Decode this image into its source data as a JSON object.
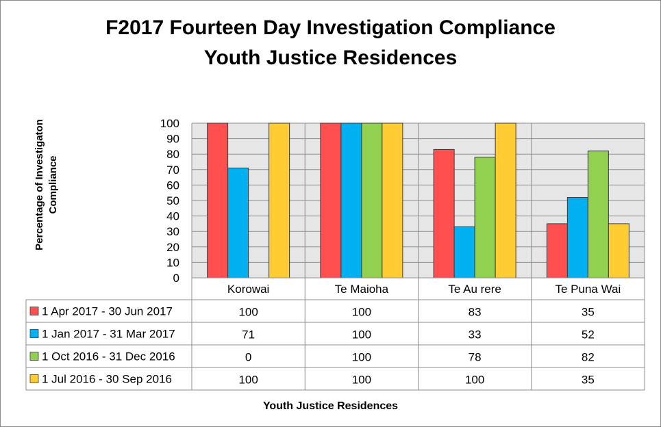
{
  "chart_data": {
    "type": "bar",
    "title_line1": "F2017 Fourteen Day Investigation Compliance",
    "title_line2": "Youth Justice Residences",
    "ylabel": "Percentage of Investigaton Compliance",
    "xlabel": "Youth Justice Residences",
    "ylim": [
      0,
      100
    ],
    "yticks": [
      0,
      10,
      20,
      30,
      40,
      50,
      60,
      70,
      80,
      90,
      100
    ],
    "grid": true,
    "legend": "data-table",
    "categories": [
      "Korowai",
      "Te Maioha",
      "Te Au rere",
      "Te Puna Wai"
    ],
    "series": [
      {
        "name": "1 Apr 2017 - 30 Jun  2017",
        "color": "#ff4f4f",
        "values": [
          100,
          100,
          83,
          35
        ]
      },
      {
        "name": "1 Jan 2017 - 31 Mar 2017",
        "color": "#00b0f0",
        "values": [
          71,
          100,
          33,
          52
        ]
      },
      {
        "name": "1 Oct 2016 - 31 Dec 2016",
        "color": "#92d050",
        "values": [
          0,
          100,
          78,
          82
        ]
      },
      {
        "name": "1 Jul 2016 - 30 Sep 2016",
        "color": "#ffcc33",
        "values": [
          100,
          100,
          100,
          35
        ]
      }
    ]
  }
}
